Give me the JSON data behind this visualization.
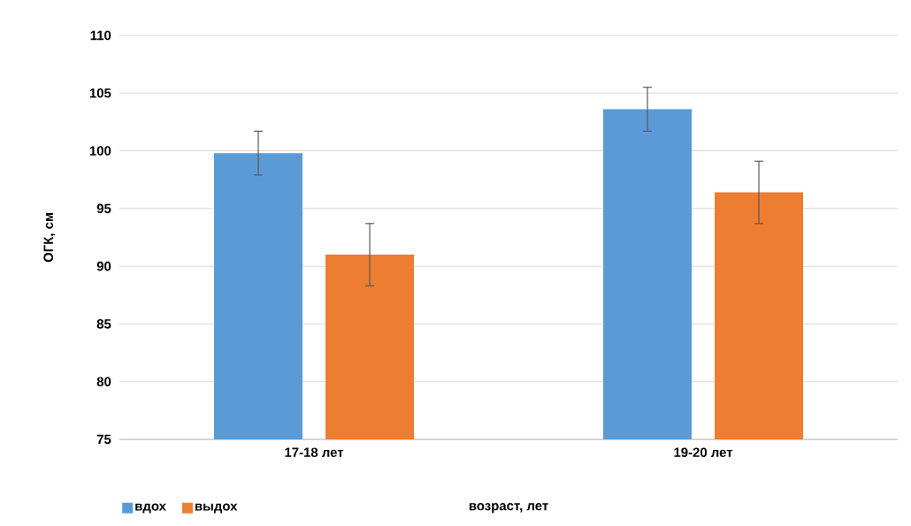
{
  "chart_data": {
    "type": "bar",
    "xlabel": "возраст, лет",
    "ylabel": "ОГК, см",
    "categories": [
      "17-18 лет",
      "19-20 лет"
    ],
    "series": [
      {
        "name": "вдох",
        "color": "#5b9bd5",
        "values": [
          99.8,
          103.6
        ],
        "errors": [
          1.9,
          1.9
        ]
      },
      {
        "name": "выдох",
        "color": "#ed7d31",
        "values": [
          91.0,
          96.4
        ],
        "errors": [
          2.7,
          2.7
        ]
      }
    ],
    "ylim": [
      75,
      110
    ],
    "yticks": [
      75,
      80,
      85,
      90,
      95,
      100,
      105,
      110
    ],
    "grid": "y",
    "legend": "bottom"
  }
}
